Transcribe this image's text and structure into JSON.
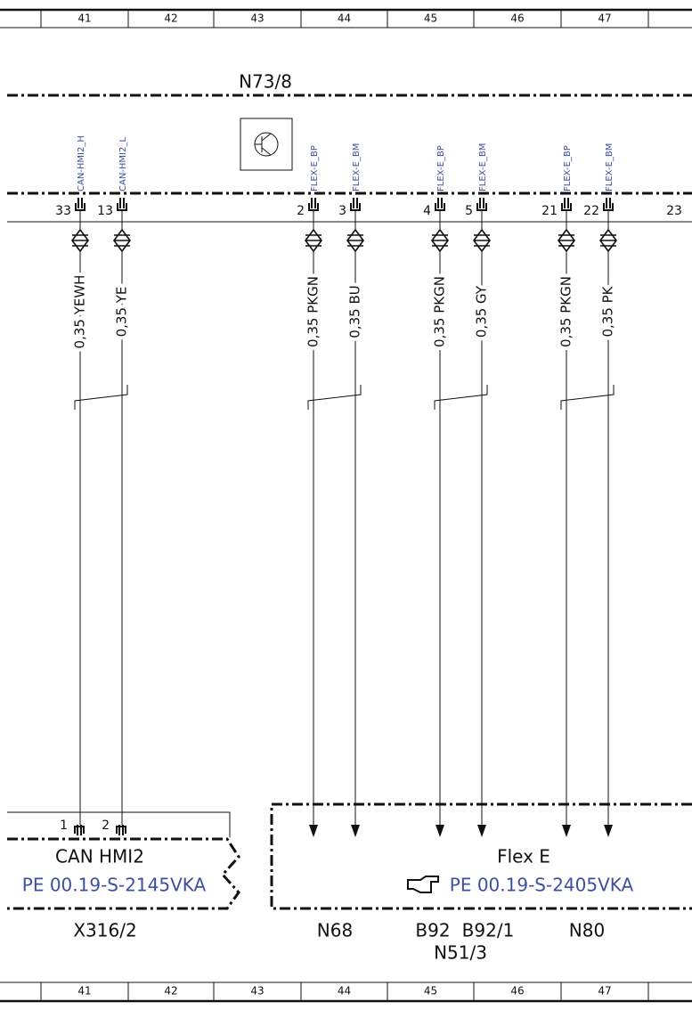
{
  "ruler_top": [
    "41",
    "42",
    "43",
    "44",
    "45",
    "46",
    "47"
  ],
  "ruler_bottom": [
    "41",
    "42",
    "43",
    "44",
    "45",
    "46",
    "47"
  ],
  "component": {
    "label": "N73/8",
    "pins": [
      {
        "number": "33",
        "signal": "CAN-HMI2_H",
        "wire": "0,35 YEWH"
      },
      {
        "number": "13",
        "signal": "CAN-HMI2_L",
        "wire": "0,35 YE"
      },
      {
        "number": "2",
        "signal": "FLEX-E_BP",
        "wire": "0,35 PKGN"
      },
      {
        "number": "3",
        "signal": "FLEX-E_BM",
        "wire": "0,35 BU"
      },
      {
        "number": "4",
        "signal": "FLEX-E_BP",
        "wire": "0,35 PKGN"
      },
      {
        "number": "5",
        "signal": "FLEX-E_BM",
        "wire": "0,35 GY"
      },
      {
        "number": "21",
        "signal": "FLEX-E_BP",
        "wire": "0,35 PKGN"
      },
      {
        "number": "22",
        "signal": "FLEX-E_BM",
        "wire": "0,35 PK"
      }
    ],
    "extra_pin": "23"
  },
  "connector": {
    "label": "X316/2",
    "pins": [
      "1",
      "2"
    ],
    "title": "CAN HMI2",
    "reference": "PE 00.19-S-2145VKA"
  },
  "flex": {
    "title": "Flex E",
    "reference": "PE 00.19-S-2405VKA"
  },
  "targets": [
    "N68",
    "B92",
    "B92/1",
    "N80",
    "N51/3"
  ]
}
